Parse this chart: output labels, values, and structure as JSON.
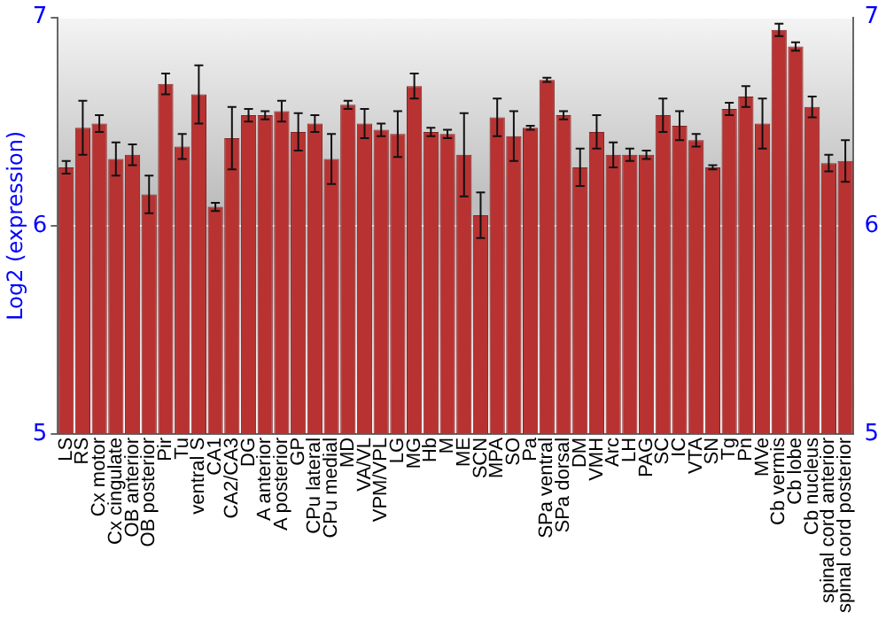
{
  "chart_data": {
    "type": "bar",
    "ylabel": "Log2 (expression)",
    "categories": [
      "LS",
      "RS",
      "Cx motor",
      "Cx cingulate",
      "OB anterior",
      "OB posterior",
      "Pir",
      "Tu",
      "ventral S",
      "CA1",
      "CA2/CA3",
      "DG",
      "A anterior",
      "A posterior",
      "GP",
      "CPu lateral",
      "CPu medial",
      "MD",
      "VA/VL",
      "VPM/VPL",
      "LG",
      "MG",
      "Hb",
      "M",
      "ME",
      "SCN",
      "MPA",
      "SO",
      "Pa",
      "SPa ventral",
      "SPa dorsal",
      "DM",
      "VMH",
      "Arc",
      "LH",
      "PAG",
      "SC",
      "IC",
      "VTA",
      "SN",
      "Tg",
      "Pn",
      "MVe",
      "Cb vermis",
      "Cb lobe",
      "Cb nucleus",
      "spinal cord anterior",
      "spinal cord posterior"
    ],
    "values": [
      6.28,
      6.47,
      6.49,
      6.32,
      6.34,
      6.15,
      6.68,
      6.38,
      6.63,
      6.09,
      6.42,
      6.53,
      6.53,
      6.55,
      6.45,
      6.49,
      6.32,
      6.58,
      6.49,
      6.46,
      6.44,
      6.67,
      6.45,
      6.44,
      6.34,
      6.05,
      6.52,
      6.43,
      6.47,
      6.7,
      6.53,
      6.28,
      6.45,
      6.34,
      6.34,
      6.34,
      6.53,
      6.48,
      6.41,
      6.28,
      6.56,
      6.62,
      6.49,
      6.94,
      6.86,
      6.57,
      6.3,
      6.31
    ],
    "errors": [
      0.03,
      0.13,
      0.04,
      0.08,
      0.05,
      0.09,
      0.05,
      0.06,
      0.14,
      0.02,
      0.15,
      0.03,
      0.02,
      0.05,
      0.09,
      0.04,
      0.12,
      0.02,
      0.07,
      0.03,
      0.11,
      0.06,
      0.02,
      0.02,
      0.2,
      0.11,
      0.09,
      0.12,
      0.01,
      0.01,
      0.02,
      0.09,
      0.08,
      0.06,
      0.03,
      0.02,
      0.08,
      0.07,
      0.03,
      0.01,
      0.03,
      0.05,
      0.12,
      0.03,
      0.02,
      0.05,
      0.04,
      0.1
    ],
    "color": "#b83232",
    "ylim": [
      5,
      7
    ],
    "yticks": [
      5,
      6,
      7
    ],
    "y2lim": [
      5,
      7
    ],
    "y2ticks": [
      5,
      6,
      7
    ],
    "grid": "y",
    "legend": false
  }
}
